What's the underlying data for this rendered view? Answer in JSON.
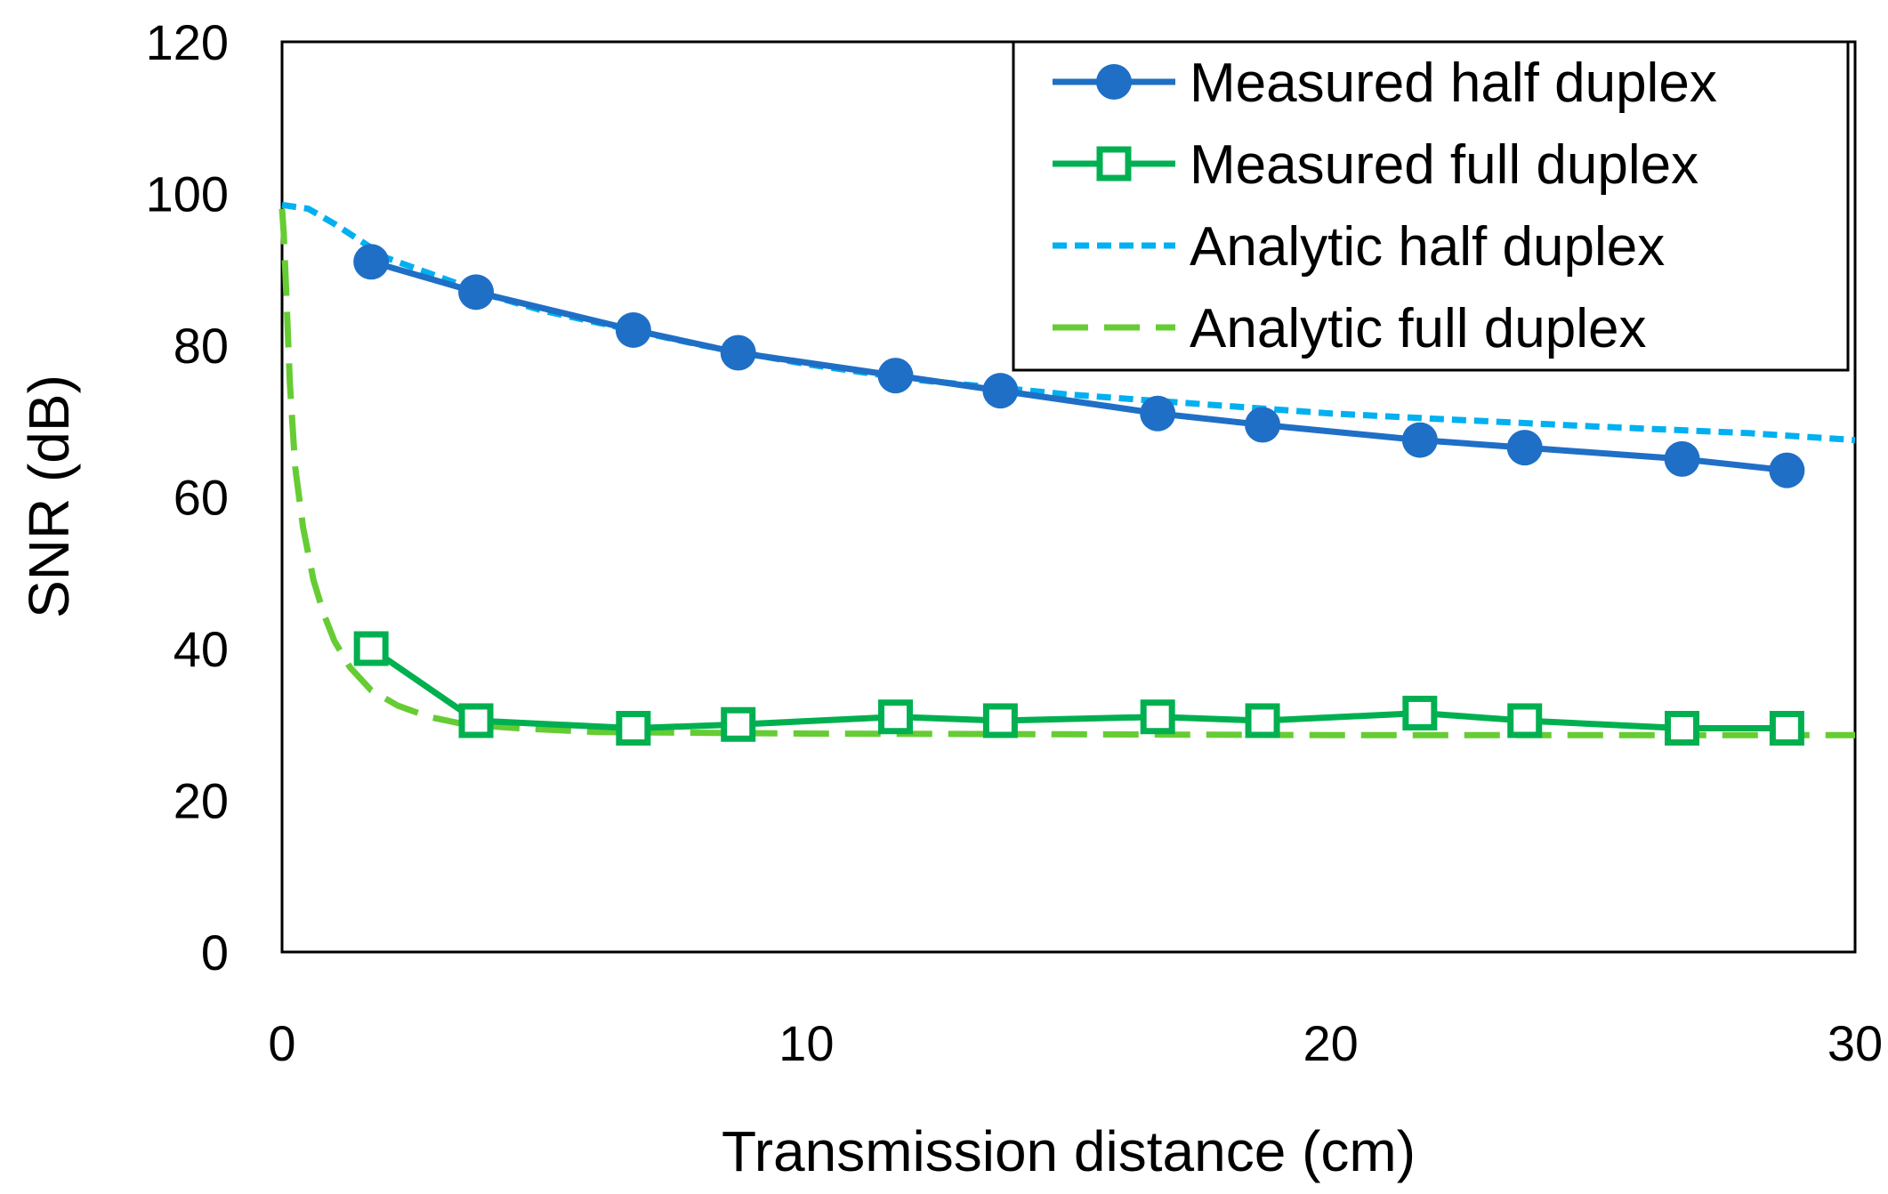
{
  "chart_data": {
    "type": "line",
    "title": "",
    "xlabel": "Transmission distance (cm)",
    "ylabel": "SNR (dB)",
    "xlim": [
      0,
      30
    ],
    "ylim": [
      0,
      120
    ],
    "xticks": [
      0,
      10,
      20,
      30
    ],
    "yticks": [
      0,
      20,
      40,
      60,
      80,
      100,
      120
    ],
    "grid": false,
    "legend_position": "top-right",
    "series": [
      {
        "name": "Measured half duplex",
        "color": "#1F6FC6",
        "style": "solid",
        "marker": "filled-circle",
        "x": [
          1.7,
          3.7,
          6.7,
          8.7,
          11.7,
          13.7,
          16.7,
          18.7,
          21.7,
          23.7,
          26.7,
          28.7
        ],
        "y": [
          91,
          87,
          82,
          79,
          76,
          74,
          71,
          69.5,
          67.5,
          66.5,
          65,
          63.5
        ]
      },
      {
        "name": "Measured full duplex",
        "color": "#00B050",
        "style": "solid",
        "marker": "open-square",
        "x": [
          1.7,
          3.7,
          6.7,
          8.7,
          11.7,
          13.7,
          16.7,
          18.7,
          21.7,
          23.7,
          26.7,
          28.7
        ],
        "y": [
          40,
          30.5,
          29.5,
          30,
          31,
          30.5,
          31,
          30.5,
          31.5,
          30.5,
          29.5,
          29.5
        ]
      },
      {
        "name": "Analytic half duplex",
        "color": "#00B0F0",
        "style": "short-dash",
        "marker": "none",
        "x": [
          0,
          0.5,
          1,
          2,
          3,
          4,
          5,
          6,
          8,
          10,
          12,
          15,
          18,
          20,
          22,
          25,
          28,
          30
        ],
        "y": [
          98.5,
          98,
          96,
          91.5,
          89,
          86.5,
          84.5,
          83,
          80,
          77.5,
          75.5,
          73.5,
          72,
          71,
          70.3,
          69.3,
          68.4,
          67.5
        ]
      },
      {
        "name": "Analytic full duplex",
        "color": "#66CC33",
        "style": "long-dash",
        "marker": "none",
        "x": [
          0,
          0.03,
          0.08,
          0.15,
          0.25,
          0.4,
          0.6,
          0.8,
          1.0,
          1.3,
          1.7,
          2.2,
          2.8,
          3.5,
          4.5,
          6,
          10,
          15,
          20,
          25,
          30
        ],
        "y": [
          98,
          95,
          87,
          75,
          64,
          56,
          49,
          44.5,
          41,
          37.5,
          34.5,
          32.5,
          31,
          30,
          29.5,
          29,
          28.8,
          28.7,
          28.6,
          28.6,
          28.6
        ]
      }
    ]
  }
}
